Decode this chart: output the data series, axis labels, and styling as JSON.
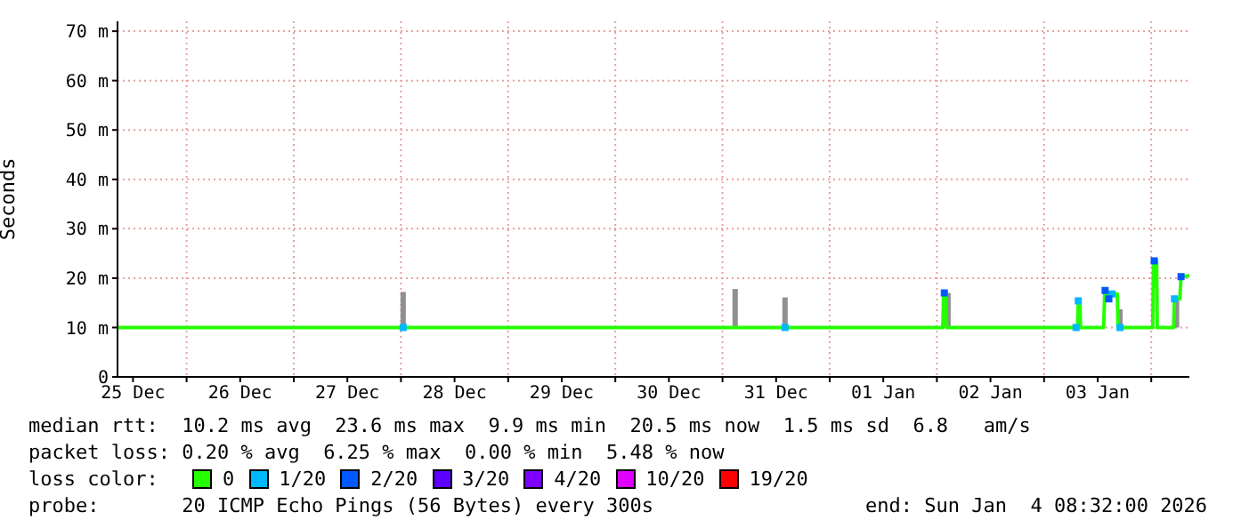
{
  "chart_data": {
    "type": "line",
    "ylabel": "Seconds",
    "legend_title": "loss color:",
    "legend": "bottom",
    "grid": true,
    "xlim": [
      "2025-12-25T08:32",
      "2026-01-04T08:32"
    ],
    "xticks": [
      {
        "value": "2025-12-25T12:00",
        "label": "25 Dec"
      },
      {
        "value": "2025-12-26T00:00",
        "label": null
      },
      {
        "value": "2025-12-26T12:00",
        "label": "26 Dec"
      },
      {
        "value": "2025-12-27T00:00",
        "label": null
      },
      {
        "value": "2025-12-27T12:00",
        "label": "27 Dec"
      },
      {
        "value": "2025-12-28T00:00",
        "label": null
      },
      {
        "value": "2025-12-28T12:00",
        "label": "28 Dec"
      },
      {
        "value": "2025-12-29T00:00",
        "label": null
      },
      {
        "value": "2025-12-29T12:00",
        "label": "29 Dec"
      },
      {
        "value": "2025-12-30T00:00",
        "label": null
      },
      {
        "value": "2025-12-30T12:00",
        "label": "30 Dec"
      },
      {
        "value": "2025-12-31T00:00",
        "label": null
      },
      {
        "value": "2025-12-31T12:00",
        "label": "31 Dec"
      },
      {
        "value": "2026-01-01T00:00",
        "label": null
      },
      {
        "value": "2026-01-01T12:00",
        "label": "01 Jan"
      },
      {
        "value": "2026-01-02T00:00",
        "label": null
      },
      {
        "value": "2026-01-02T12:00",
        "label": "02 Jan"
      },
      {
        "value": "2026-01-03T00:00",
        "label": null
      },
      {
        "value": "2026-01-03T12:00",
        "label": "03 Jan"
      },
      {
        "value": "2026-01-04T00:00",
        "label": null
      }
    ],
    "ylim": [
      0,
      72
    ],
    "yticks": [
      0,
      {
        "value": 10,
        "label": "10 m"
      },
      {
        "value": 20,
        "label": "20 m"
      },
      {
        "value": 30,
        "label": "30 m"
      },
      {
        "value": 40,
        "label": "40 m"
      },
      {
        "value": 50,
        "label": "50 m"
      },
      {
        "value": 60,
        "label": "60 m"
      },
      {
        "value": 70,
        "label": "70 m"
      }
    ],
    "series": [
      {
        "type": "bar",
        "color": "#909090",
        "x": [
          "2025-12-28T00:30",
          "2025-12-31T02:50",
          "2025-12-31T14:00",
          "2026-01-02T02:30",
          "2026-01-03T17:00",
          "2026-01-04T05:40"
        ],
        "base": [
          10,
          10,
          10,
          10,
          10,
          10
        ],
        "values": [
          7.2,
          7.8,
          6.1,
          7,
          3.7,
          6
        ]
      },
      {
        "name": "0",
        "color": "#26ff00",
        "x": [
          "2025-12-25T08:32",
          "2026-01-02T01:20",
          "2026-01-02T01:30",
          "2026-01-02T02:00",
          "2026-01-02T02:10",
          "2026-01-03T07:30",
          "2026-01-03T07:40",
          "2026-01-03T08:00",
          "2026-01-03T08:10",
          "2026-01-03T13:20",
          "2026-01-03T13:36",
          "2026-01-03T14:30",
          "2026-01-03T15:12",
          "2026-01-03T16:24",
          "2026-01-03T16:34",
          "2026-01-04T00:20",
          "2026-01-04T00:30",
          "2026-01-04T01:12",
          "2026-01-04T01:20",
          "2026-01-04T05:00",
          "2026-01-04T05:12",
          "2026-01-04T06:24",
          "2026-01-04T06:40",
          "2026-01-04T08:32"
        ],
        "values": [
          10,
          10,
          17,
          17,
          10,
          10,
          15.4,
          15.4,
          10,
          10,
          17.5,
          15.8,
          16.8,
          16.8,
          10,
          10,
          23.5,
          23.5,
          10,
          10,
          15.8,
          15.8,
          20.3,
          20.5
        ]
      },
      {
        "name": "1/20",
        "type": "scatter",
        "marker": "square",
        "color": "#00b8ff",
        "x": [
          "2025-12-28T00:30",
          "2025-12-31T14:00",
          "2026-01-03T07:10",
          "2026-01-03T07:40",
          "2026-01-03T15:12",
          "2026-01-03T17:00",
          "2026-01-04T05:12"
        ],
        "values": [
          10,
          10,
          10,
          15.4,
          16.8,
          10,
          15.8
        ]
      },
      {
        "name": "2/20",
        "type": "scatter",
        "marker": "square",
        "color": "#0059ff",
        "x": [
          "2026-01-02T01:40",
          "2026-01-03T13:40",
          "2026-01-03T14:30",
          "2026-01-04T00:40",
          "2026-01-04T06:40"
        ],
        "values": [
          17,
          17.5,
          15.8,
          23.5,
          20.3
        ]
      },
      {
        "name": "3/20",
        "type": "scatter",
        "color": "#5e00ff"
      },
      {
        "name": "4/20",
        "type": "scatter",
        "color": "#7e00ff"
      },
      {
        "name": "10/20",
        "type": "scatter",
        "color": "#dd00ff"
      },
      {
        "name": "19/20",
        "type": "scatter",
        "color": "#ff0000"
      }
    ],
    "annotations": [
      "median rtt:  10.2 ms avg  23.6 ms max  9.9 ms min  20.5 ms now  1.5 ms sd  6.8   am/s",
      "packet loss: 0.20 % avg  6.25 % max  0.00 % min  5.48 % now",
      "probe:       20 ICMP Echo Pings (56 Bytes) every 300s",
      "end: Sun Jan  4 08:32:00 2026"
    ]
  }
}
